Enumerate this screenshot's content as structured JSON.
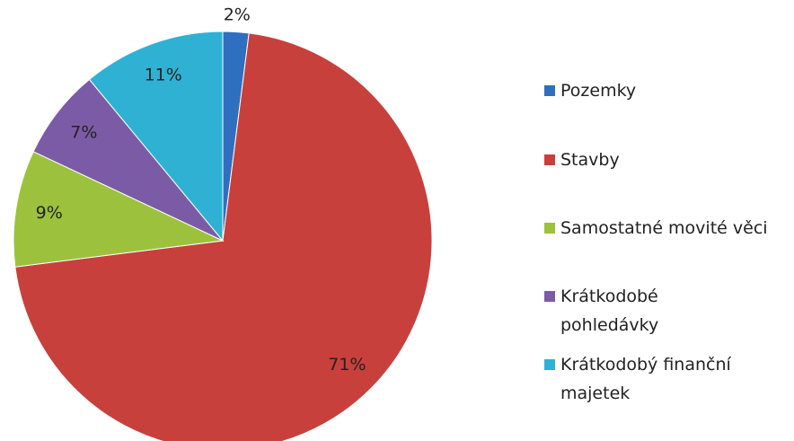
{
  "chart_data": {
    "type": "pie",
    "categories": [
      "Pozemky",
      "Stavby",
      "Samostatné movité věci",
      "Krátkodobé pohledávky",
      "Krátkodobý finanční majetek"
    ],
    "values": [
      2,
      71,
      9,
      7,
      11
    ],
    "value_labels": [
      "2%",
      "71%",
      "9%",
      "7%",
      "11%"
    ],
    "colors": [
      "#2f6fbf",
      "#c8403c",
      "#9cc23d",
      "#7c5ba6",
      "#2fb1d4"
    ],
    "legend": "right"
  }
}
